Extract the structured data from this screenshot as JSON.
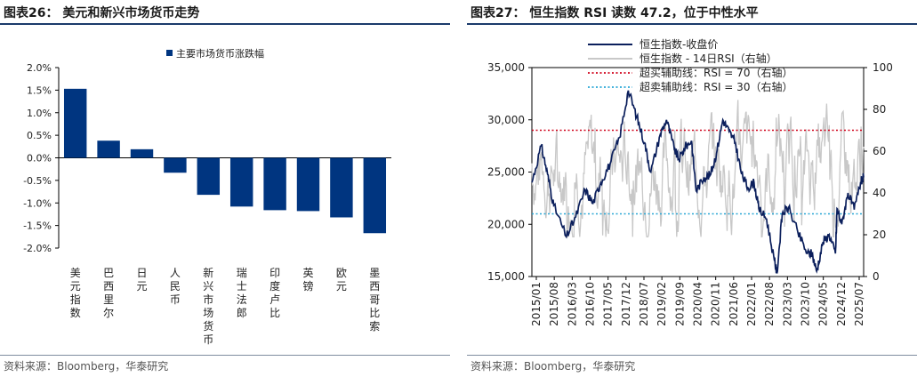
{
  "left": {
    "fig_title": "图表26：  美元和新兴市场货币走势",
    "source": "资料来源：Bloomberg，华泰研究"
  },
  "right": {
    "fig_title": "图表27：  恒生指数 RSI 读数 47.2，位于中性水平",
    "source": "资料来源：Bloomberg，华泰研究"
  },
  "chart_data": [
    {
      "type": "bar",
      "title": "",
      "legend": [
        "主要市场货币涨跌幅"
      ],
      "categories": [
        "美元指数",
        "巴西里尔",
        "日元",
        "人民币",
        "新兴市场货币",
        "瑞士法郎",
        "印度卢比",
        "英镑",
        "欧元",
        "墨西哥比索"
      ],
      "values": [
        1.53,
        0.38,
        0.19,
        -0.33,
        -0.82,
        -1.08,
        -1.16,
        -1.18,
        -1.32,
        -1.67
      ],
      "ylim": [
        -2.0,
        2.0
      ],
      "yticks": [
        "2.0%",
        "1.5%",
        "1.0%",
        "0.5%",
        "0.0%",
        "-0.5%",
        "-1.0%",
        "-1.5%",
        "-2.0%"
      ],
      "color": "#003580"
    },
    {
      "type": "line",
      "title": "",
      "legend": [
        "恒生指数-收盘价",
        "恒生指数 - 14日RSI（右轴）",
        "超买辅助线：RSI = 70（右轴）",
        "超卖辅助线：RSI = 30（右轴）"
      ],
      "x_tick_labels": [
        "2015/01",
        "2015/08",
        "2016/03",
        "2016/10",
        "2017/05",
        "2017/12",
        "2018/07",
        "2019/02",
        "2019/09",
        "2020/04",
        "2020/11",
        "2021/06",
        "2022/01",
        "2022/08",
        "2023/03",
        "2023/10",
        "2024/05",
        "2024/12",
        "2025/07"
      ],
      "ylim_left": [
        15000,
        35000
      ],
      "yticks_left": [
        "35,000",
        "30,000",
        "25,000",
        "20,000",
        "15,000"
      ],
      "ylim_right": [
        0,
        100
      ],
      "yticks_right": [
        "100",
        "80",
        "60",
        "40",
        "20",
        "0"
      ],
      "overbought": 70,
      "oversold": 30,
      "series": [
        {
          "name": "恒生指数-收盘价",
          "x": [
            2015.0,
            2015.3,
            2015.5,
            2015.7,
            2016.1,
            2016.4,
            2016.7,
            2016.95,
            2017.2,
            2017.5,
            2017.8,
            2018.08,
            2018.35,
            2018.6,
            2018.8,
            2019.1,
            2019.3,
            2019.55,
            2019.7,
            2019.9,
            2020.1,
            2020.25,
            2020.5,
            2020.7,
            2020.9,
            2021.1,
            2021.3,
            2021.5,
            2021.7,
            2021.9,
            2022.1,
            2022.25,
            2022.5,
            2022.75,
            2022.83,
            2023.0,
            2023.2,
            2023.5,
            2023.8,
            2023.95,
            2024.1,
            2024.3,
            2024.5,
            2024.7,
            2024.75,
            2024.9,
            2025.1,
            2025.3,
            2025.5,
            2025.6
          ],
          "values": [
            24000,
            27500,
            24800,
            21800,
            18800,
            20700,
            23300,
            22000,
            24000,
            25800,
            28300,
            32800,
            30300,
            27800,
            25000,
            28600,
            30000,
            27200,
            26200,
            27400,
            28000,
            23200,
            24500,
            24700,
            26800,
            30000,
            28900,
            27800,
            24800,
            23500,
            24000,
            21500,
            20500,
            16500,
            15300,
            21000,
            21600,
            19200,
            17200,
            17200,
            15500,
            18300,
            19000,
            17200,
            21500,
            20000,
            23000,
            21400,
            24000,
            24500
          ]
        },
        {
          "name": "恒生指数 - 14日RSI（右轴）",
          "values_summary": "oscillates roughly between 20 and 90"
        }
      ]
    }
  ]
}
